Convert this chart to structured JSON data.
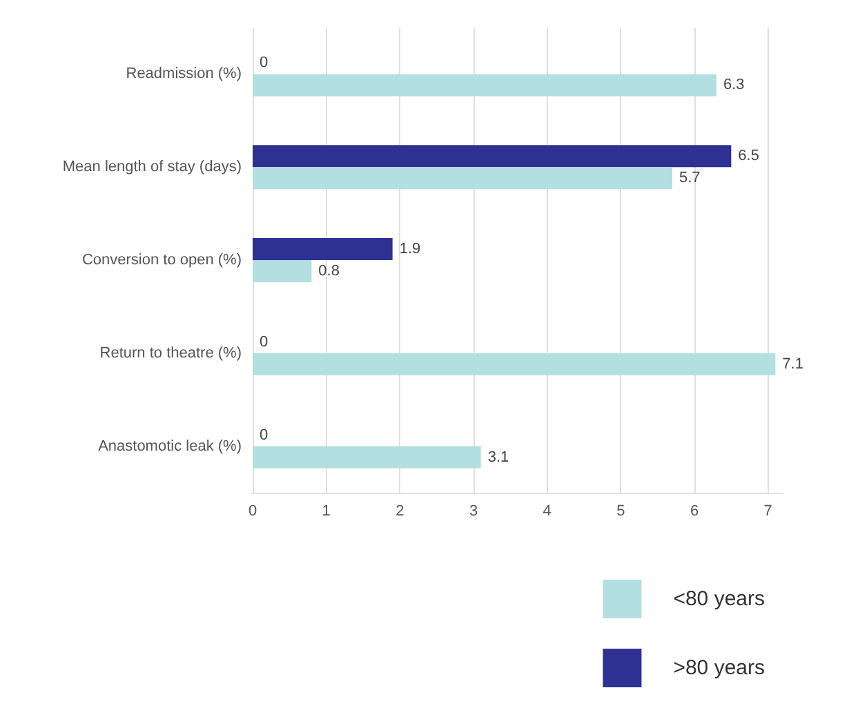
{
  "chart_data": {
    "type": "bar",
    "orientation": "horizontal",
    "categories": [
      "Readmission (%)",
      "Mean length of stay (days)",
      "Conversion to open (%)",
      "Return to theatre (%)",
      "Anastomotic leak (%)"
    ],
    "series": [
      {
        "name": "<80 years",
        "color": "#b3dfe0",
        "values": [
          6.3,
          5.7,
          0.8,
          7.1,
          3.1
        ]
      },
      {
        "name": ">80 years",
        "color": "#2e3192",
        "values": [
          0,
          6.5,
          1.9,
          0,
          0
        ]
      }
    ],
    "xlim": [
      0,
      7.2
    ],
    "xticks": [
      0,
      1,
      2,
      3,
      4,
      5,
      6,
      7
    ],
    "grid": "x",
    "legend": "bottom right",
    "data_labels": true
  }
}
